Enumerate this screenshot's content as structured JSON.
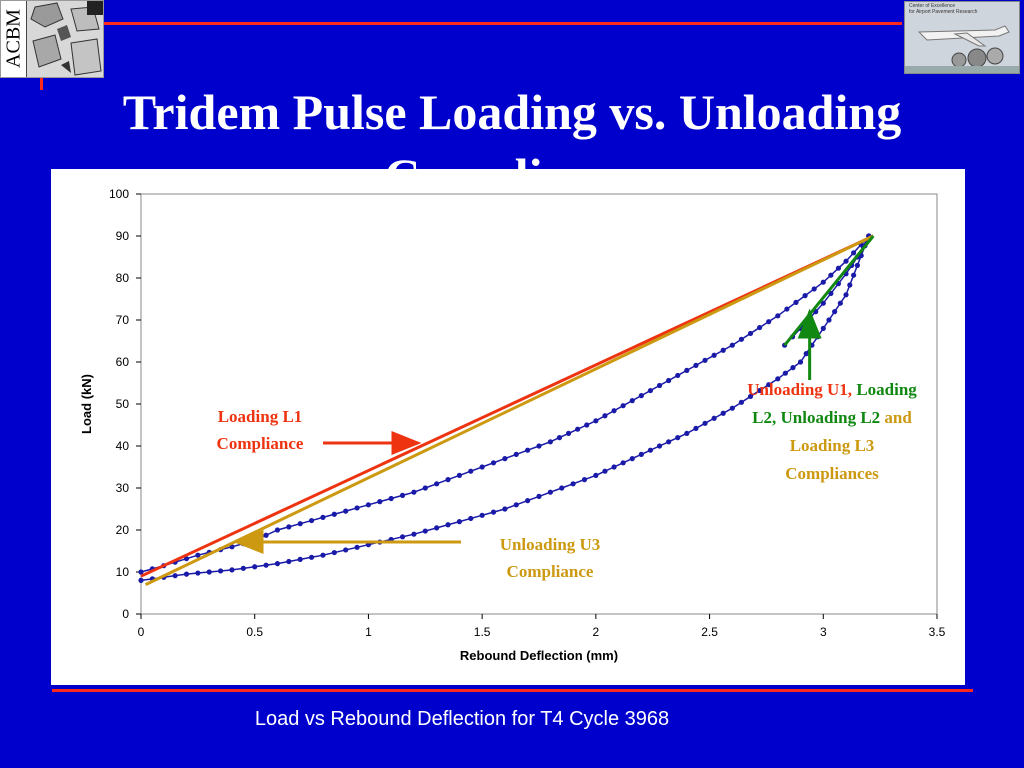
{
  "slide": {
    "title": "Tridem Pulse Loading vs. Unloading Compliance",
    "caption": "Load vs Rebound Deflection for T4 Cycle 3968",
    "logo_left_text": "ACBM",
    "logo_right_lines": [
      "Center of Excellence",
      "for Airport Pavement Research"
    ]
  },
  "colors": {
    "background": "#0000cc",
    "accent_line": "#ff2a1a",
    "data_series": "#1a1aa8",
    "loading_l1": "#ee3311",
    "unloading_u3": "#cc9911",
    "loading_l2": "#118811"
  },
  "chart_data": {
    "type": "scatter",
    "title": "",
    "xlabel": "Rebound Deflection (mm)",
    "ylabel": "Load (kN)",
    "xlim": [
      0,
      3.5
    ],
    "ylim": [
      0,
      100
    ],
    "xticks": [
      0,
      0.5,
      1,
      1.5,
      2,
      2.5,
      3,
      3.5
    ],
    "xtick_labels": [
      "0",
      "0.5",
      "1",
      "1.5",
      "2",
      "2.5",
      "3",
      "3.5"
    ],
    "yticks": [
      0,
      10,
      20,
      30,
      40,
      50,
      60,
      70,
      80,
      90,
      100
    ],
    "ytick_labels": [
      "0",
      "10",
      "20",
      "30",
      "40",
      "50",
      "60",
      "70",
      "80",
      "90",
      "100"
    ],
    "grid": false,
    "series": [
      {
        "kind": "markers",
        "values_upper": [
          [
            0,
            10
          ],
          [
            0.1,
            11.5
          ],
          [
            0.25,
            14
          ],
          [
            0.4,
            16
          ],
          [
            0.5,
            17.5
          ],
          [
            0.6,
            20
          ],
          [
            0.8,
            23
          ],
          [
            1,
            26
          ],
          [
            1.2,
            29
          ],
          [
            1.4,
            33
          ],
          [
            1.6,
            37
          ],
          [
            1.8,
            41
          ],
          [
            2,
            46
          ],
          [
            2.2,
            52
          ],
          [
            2.4,
            58
          ],
          [
            2.6,
            64
          ],
          [
            2.8,
            71
          ],
          [
            3,
            79
          ],
          [
            3.1,
            84
          ],
          [
            3.2,
            90
          ]
        ],
        "values_lower": [
          [
            0,
            8
          ],
          [
            0.2,
            9.5
          ],
          [
            0.4,
            10.5
          ],
          [
            0.6,
            12
          ],
          [
            0.8,
            14
          ],
          [
            1,
            16.5
          ],
          [
            1.2,
            19
          ],
          [
            1.4,
            22
          ],
          [
            1.6,
            25
          ],
          [
            1.8,
            29
          ],
          [
            2,
            33
          ],
          [
            2.2,
            38
          ],
          [
            2.4,
            43
          ],
          [
            2.6,
            49
          ],
          [
            2.8,
            56
          ],
          [
            2.9,
            60
          ],
          [
            3,
            68
          ],
          [
            3.1,
            76
          ],
          [
            3.2,
            90
          ]
        ],
        "values_inner": [
          [
            2.83,
            64
          ],
          [
            2.9,
            68
          ],
          [
            3,
            74
          ],
          [
            3.1,
            81
          ],
          [
            3.15,
            85
          ],
          [
            3.2,
            90
          ]
        ]
      },
      {
        "kind": "line",
        "values": [
          [
            0,
            9
          ],
          [
            3.22,
            90
          ]
        ]
      },
      {
        "kind": "line",
        "values": [
          [
            0.02,
            7
          ],
          [
            3.22,
            90
          ]
        ]
      },
      {
        "kind": "line",
        "values": [
          [
            2.83,
            64
          ],
          [
            3.22,
            90
          ]
        ]
      }
    ],
    "annotations": [
      {
        "lines": [
          [
            "Loading L1"
          ],
          [
            "Compliance"
          ]
        ],
        "arrow_to": [
          1.22,
          40.5
        ]
      },
      {
        "lines": [
          [
            "Unloading U3"
          ],
          [
            "Compliance"
          ]
        ],
        "arrow_to": [
          0.42,
          17
        ]
      },
      {
        "lines": [
          [
            "Unloading U1,",
            " Loading"
          ],
          [
            "L2,",
            " Unloading L2",
            " and"
          ],
          [
            "Loading L3"
          ],
          [
            "Compliances"
          ]
        ],
        "arrow_to": [
          2.94,
          72
        ]
      }
    ]
  }
}
